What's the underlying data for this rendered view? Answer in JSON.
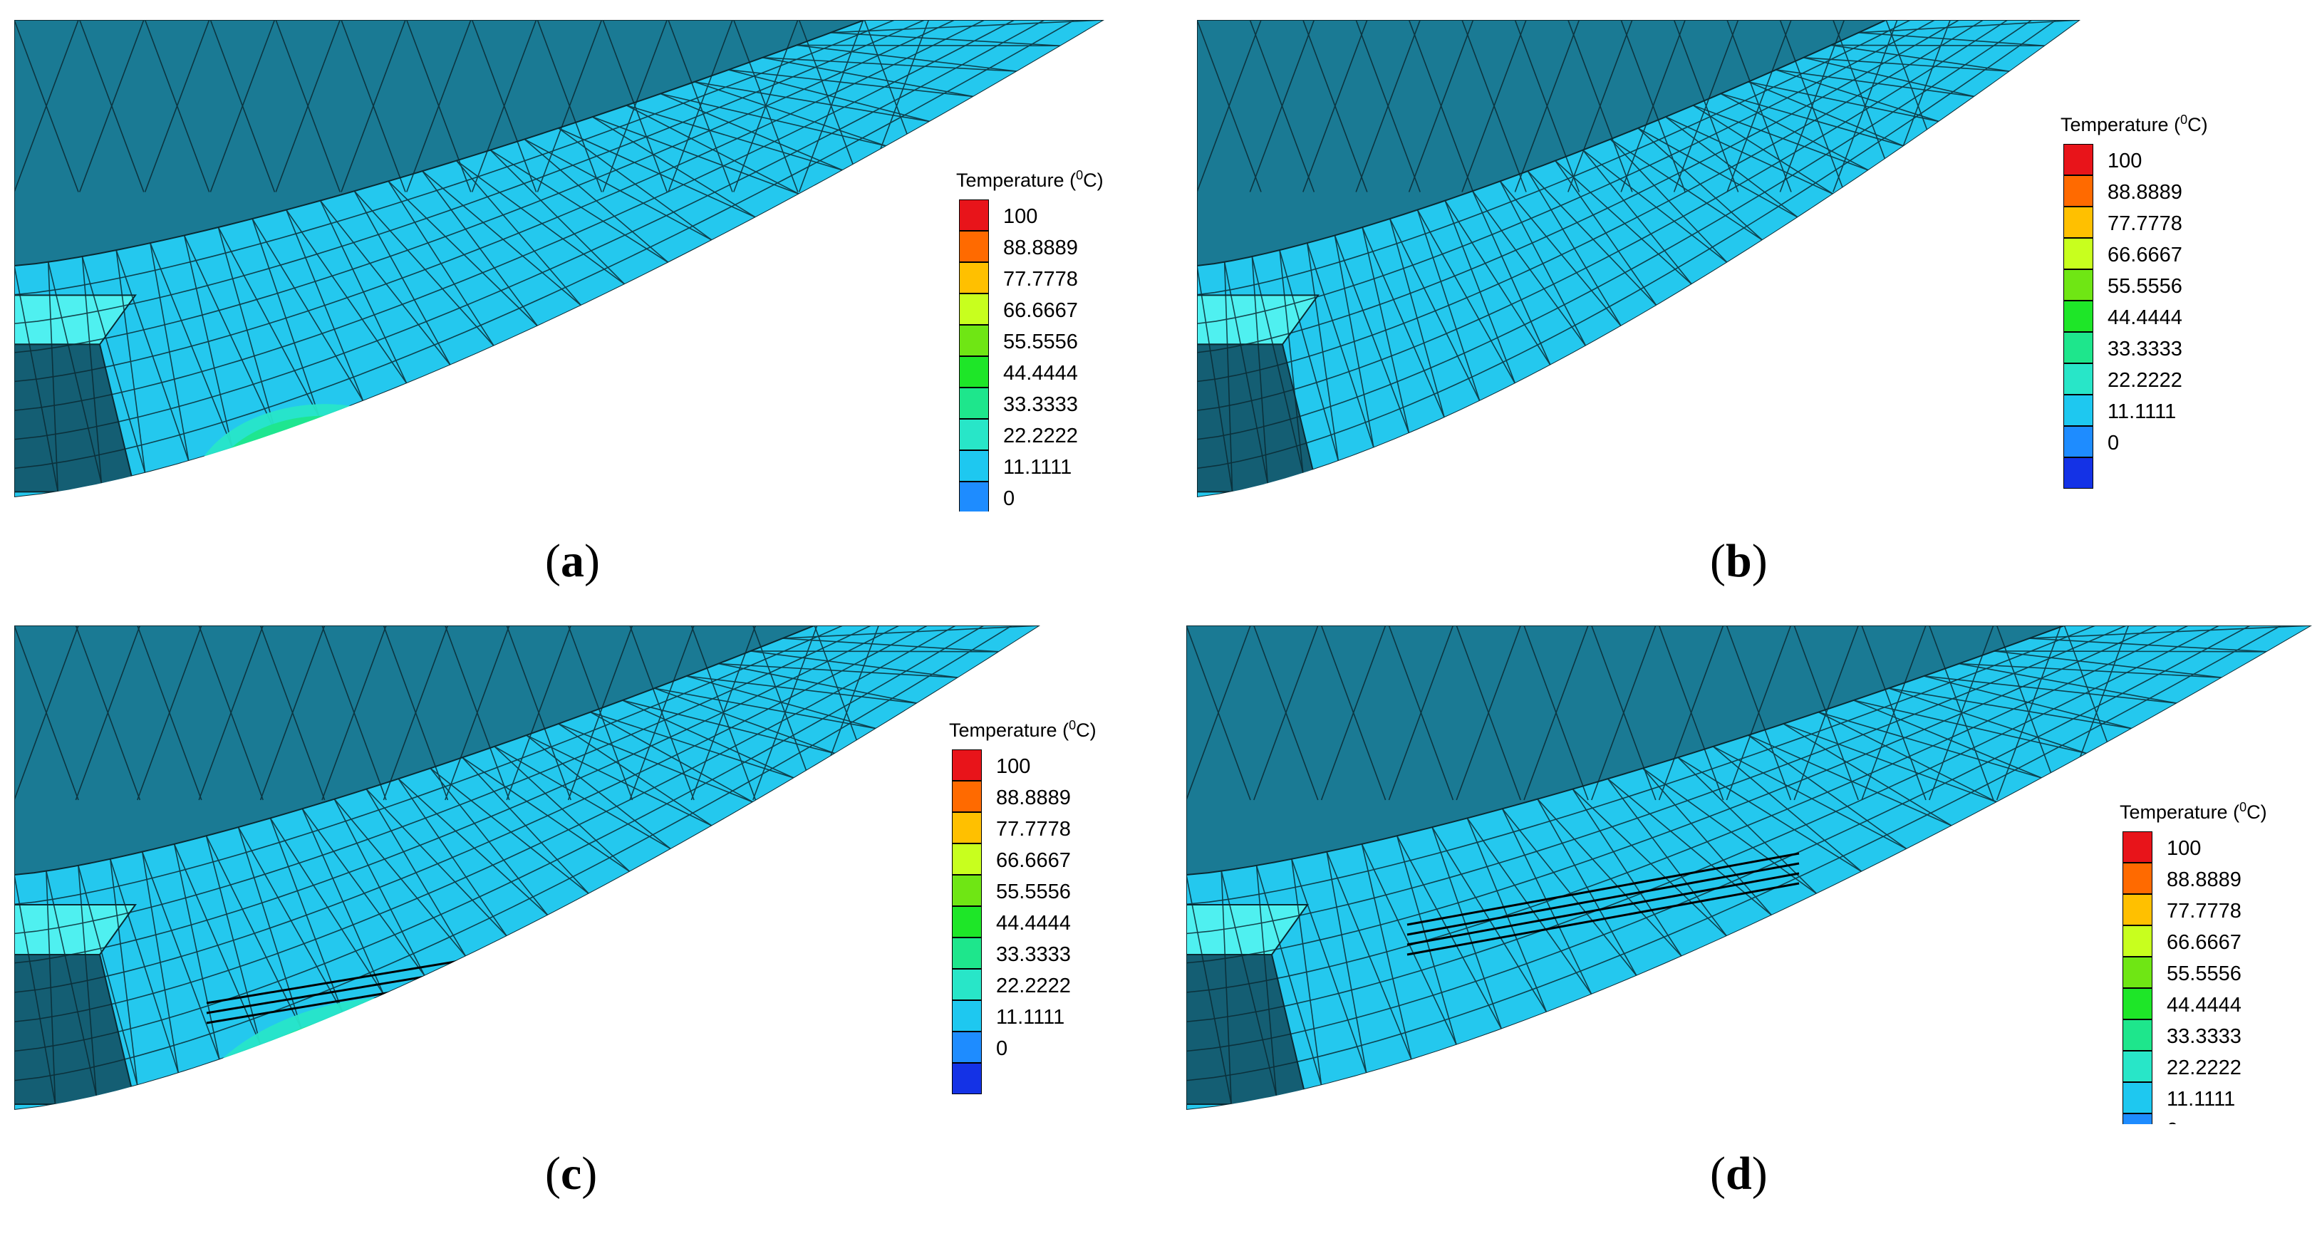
{
  "legend": {
    "title": "Temperature (",
    "title_sup": "0",
    "title_unit": "C)",
    "ticks": [
      "100",
      "88.8889",
      "77.7778",
      "66.6667",
      "55.5556",
      "44.4444",
      "33.3333",
      "22.2222",
      "11.1111",
      "0"
    ],
    "colors": [
      "#e8141a",
      "#ff6a00",
      "#ffc000",
      "#c8ff1e",
      "#6fe614",
      "#1ee628",
      "#1ee68c",
      "#28e6c8",
      "#1ec8f0",
      "#1e8cff",
      "#1432e6"
    ]
  },
  "panels": [
    {
      "label": "a",
      "hotspot_color": "#e8141a"
    },
    {
      "label": "b",
      "hotspot_color": "#e8141a"
    },
    {
      "label": "c",
      "hotspot_color": "#e8141a"
    },
    {
      "label": "d",
      "hotspot_color": "#e8141a"
    }
  ],
  "mesh_colors": {
    "inner": "#1a7a94",
    "inner_dark": "#145e73",
    "ring": "#24c8ee",
    "face": "#3aaac8",
    "step": "#4ff0f0",
    "edge": "#0a2a33"
  }
}
